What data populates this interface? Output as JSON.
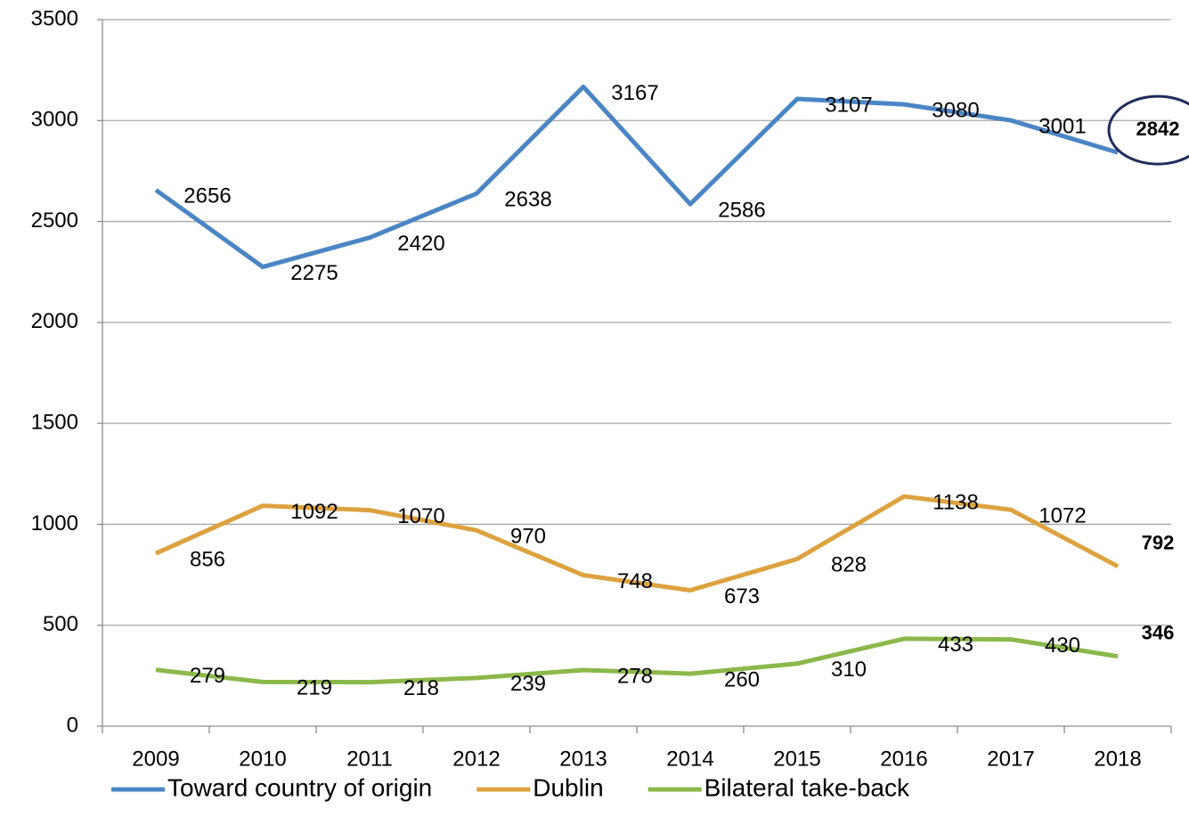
{
  "chart_data": {
    "type": "line",
    "categories": [
      "2009",
      "2010",
      "2011",
      "2012",
      "2013",
      "2014",
      "2015",
      "2016",
      "2017",
      "2018"
    ],
    "series": [
      {
        "name": "Toward country of origin",
        "color": "#4a86c5",
        "values": [
          2656,
          2275,
          2420,
          2638,
          3167,
          2586,
          3107,
          3080,
          3001,
          2842
        ]
      },
      {
        "name": "Dublin",
        "color": "#dda23f",
        "values": [
          856,
          1092,
          1070,
          970,
          748,
          673,
          828,
          1138,
          1072,
          792
        ]
      },
      {
        "name": "Bilateral take-back",
        "color": "#8bb84a",
        "values": [
          279,
          219,
          218,
          239,
          278,
          260,
          310,
          433,
          430,
          346
        ]
      }
    ],
    "ylim": [
      0,
      3500
    ],
    "yticks": [
      0,
      500,
      1000,
      1500,
      2000,
      2500,
      3000,
      3500
    ],
    "grid": true,
    "legend": "bottom"
  }
}
